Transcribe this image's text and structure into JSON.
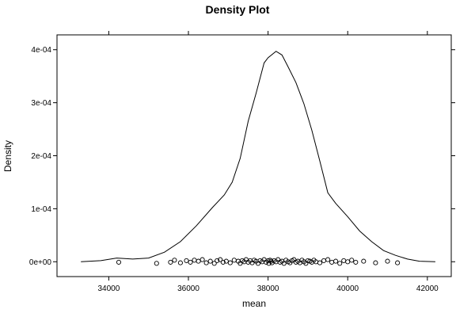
{
  "chart_data": {
    "type": "line",
    "title": "Density Plot",
    "xlabel": "mean",
    "ylabel": "Density",
    "xlim": [
      32700,
      42600
    ],
    "ylim": [
      -2.8e-05,
      0.000428
    ],
    "x_ticks": [
      34000,
      36000,
      38000,
      40000,
      42000
    ],
    "x_tick_labels": [
      "34000",
      "36000",
      "38000",
      "40000",
      "42000"
    ],
    "y_ticks": [
      0,
      0.0001,
      0.0002,
      0.0003,
      0.0004
    ],
    "y_tick_labels": [
      "0e+00",
      "1e-04",
      "2e-04",
      "3e-04",
      "4e-04"
    ],
    "grid": false,
    "series": [
      {
        "kind": "density",
        "x": [
          33300,
          33800,
          34200,
          34600,
          35000,
          35400,
          35800,
          36200,
          36600,
          36900,
          37100,
          37300,
          37500,
          37700,
          37900,
          38000,
          38200,
          38350,
          38500,
          38700,
          38900,
          39100,
          39300,
          39500,
          39700,
          40000,
          40300,
          40600,
          40900,
          41200,
          41500,
          41800,
          42200
        ],
        "y": [
          0,
          2e-06,
          7e-06,
          5e-06,
          7e-06,
          1.8e-05,
          3.8e-05,
          6.8e-05,
          0.000102,
          0.000126,
          0.00015,
          0.000195,
          0.000265,
          0.000318,
          0.000375,
          0.000385,
          0.000397,
          0.00039,
          0.000368,
          0.000338,
          0.000298,
          0.000248,
          0.00019,
          0.00013,
          0.00011,
          8.5e-05,
          5.8e-05,
          3.8e-05,
          2.1e-05,
          1.2e-05,
          5e-06,
          1e-06,
          0
        ]
      },
      {
        "kind": "rug-points",
        "x": [
          34250,
          35200,
          35550,
          35650,
          35800,
          35950,
          36050,
          36150,
          36250,
          36350,
          36450,
          36550,
          36650,
          36720,
          36800,
          36870,
          36950,
          37050,
          37150,
          37250,
          37300,
          37350,
          37400,
          37450,
          37500,
          37550,
          37600,
          37650,
          37700,
          37750,
          37800,
          37850,
          37900,
          37950,
          38000,
          38020,
          38050,
          38080,
          38100,
          38150,
          38200,
          38250,
          38300,
          38350,
          38400,
          38450,
          38500,
          38550,
          38600,
          38650,
          38700,
          38750,
          38800,
          38850,
          38900,
          38950,
          39000,
          39050,
          39100,
          39150,
          39200,
          39300,
          39400,
          39500,
          39600,
          39700,
          39800,
          39900,
          40000,
          40100,
          40200,
          40400,
          40700,
          41000,
          41250
        ],
        "y": [
          -1e-06,
          -3e-06,
          -1e-06,
          3e-06,
          -2e-06,
          2e-06,
          -1e-06,
          3e-06,
          1e-06,
          4e-06,
          -2e-06,
          1e-06,
          -3e-06,
          2e-06,
          4e-06,
          -1e-06,
          1e-06,
          -2e-06,
          3e-06,
          1e-06,
          -3e-06,
          2e-06,
          0.0,
          4e-06,
          -1e-06,
          2e-06,
          -2e-06,
          3e-06,
          1e-06,
          -3e-06,
          2e-06,
          0.0,
          4e-06,
          -1e-06,
          2e-06,
          -3e-06,
          3e-06,
          1e-06,
          -2e-06,
          2e-06,
          0.0,
          4e-06,
          -1e-06,
          1e-06,
          -3e-06,
          3e-06,
          0.0,
          -2e-06,
          2e-06,
          4e-06,
          -1e-06,
          1e-06,
          -2e-06,
          3e-06,
          0.0,
          -3e-06,
          2e-06,
          1e-06,
          -1e-06,
          3e-06,
          0.0,
          -2e-06,
          2e-06,
          4e-06,
          -1e-06,
          1e-06,
          -3e-06,
          2e-06,
          0.0,
          3e-06,
          -1e-06,
          1e-06,
          -2e-06,
          1e-06,
          -2e-06
        ]
      }
    ]
  }
}
